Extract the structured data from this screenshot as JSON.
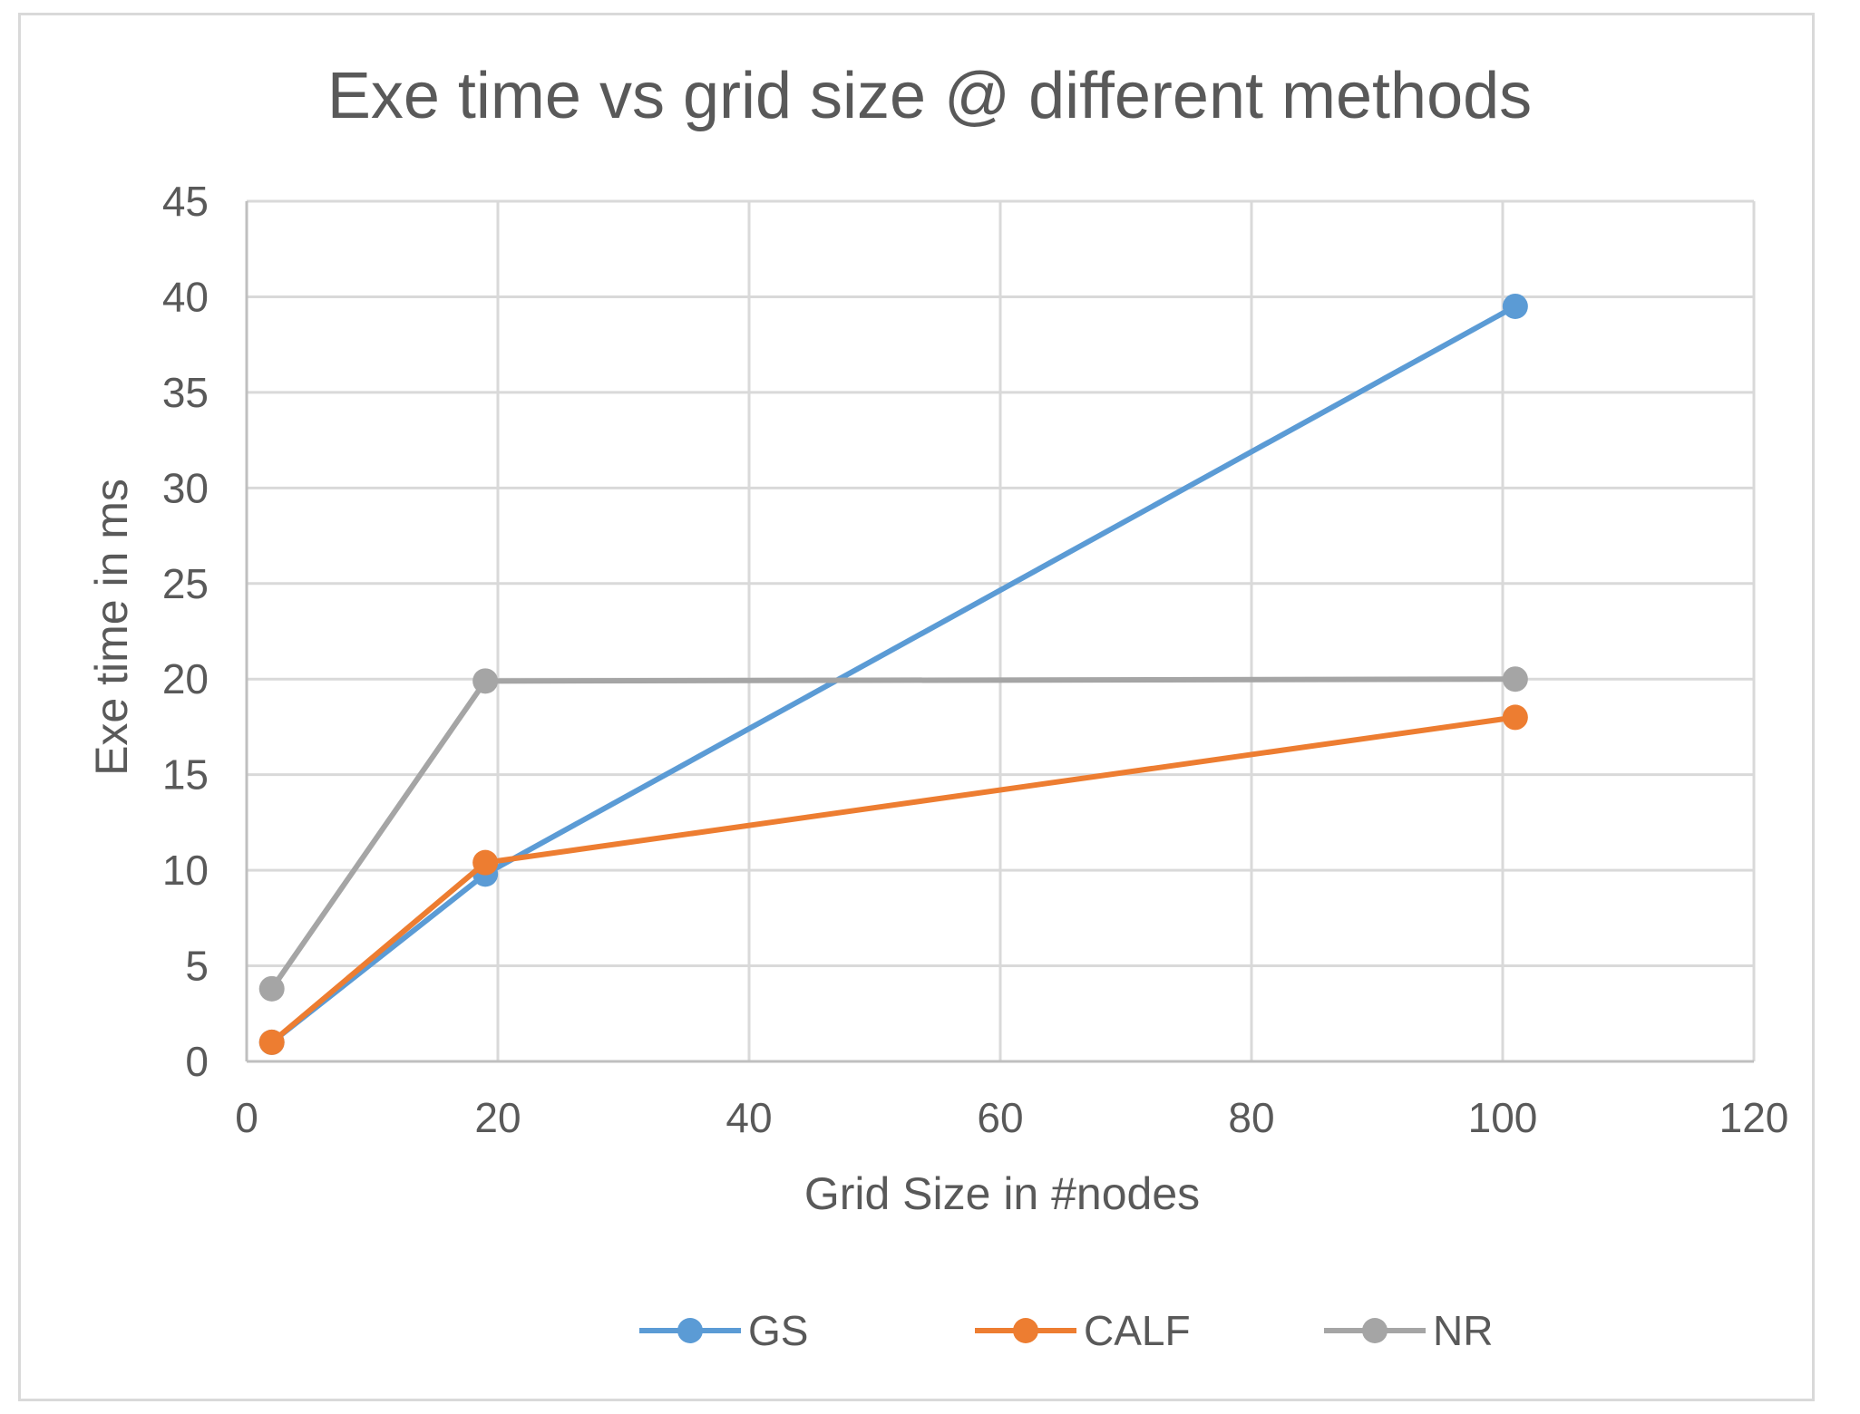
{
  "chart_data": {
    "type": "line",
    "title": "Exe time vs grid size @ different methods",
    "xlabel": "Grid Size in #nodes",
    "ylabel": "Exe time in ms",
    "xlim": [
      0,
      120
    ],
    "ylim": [
      0,
      45
    ],
    "xticks": [
      0,
      20,
      40,
      60,
      80,
      100,
      120
    ],
    "yticks": [
      0,
      5,
      10,
      15,
      20,
      25,
      30,
      35,
      40,
      45
    ],
    "grid": true,
    "legend_position": "bottom",
    "series": [
      {
        "name": "GS",
        "color": "#5b9bd5",
        "points": [
          [
            2,
            1
          ],
          [
            19,
            9.8
          ],
          [
            101,
            39.5
          ]
        ]
      },
      {
        "name": "CALF",
        "color": "#ed7d31",
        "points": [
          [
            2,
            1
          ],
          [
            19,
            10.4
          ],
          [
            101,
            18
          ]
        ]
      },
      {
        "name": "NR",
        "color": "#a5a5a5",
        "points": [
          [
            2,
            3.8
          ],
          [
            19,
            19.9
          ],
          [
            101,
            20
          ]
        ]
      }
    ]
  }
}
